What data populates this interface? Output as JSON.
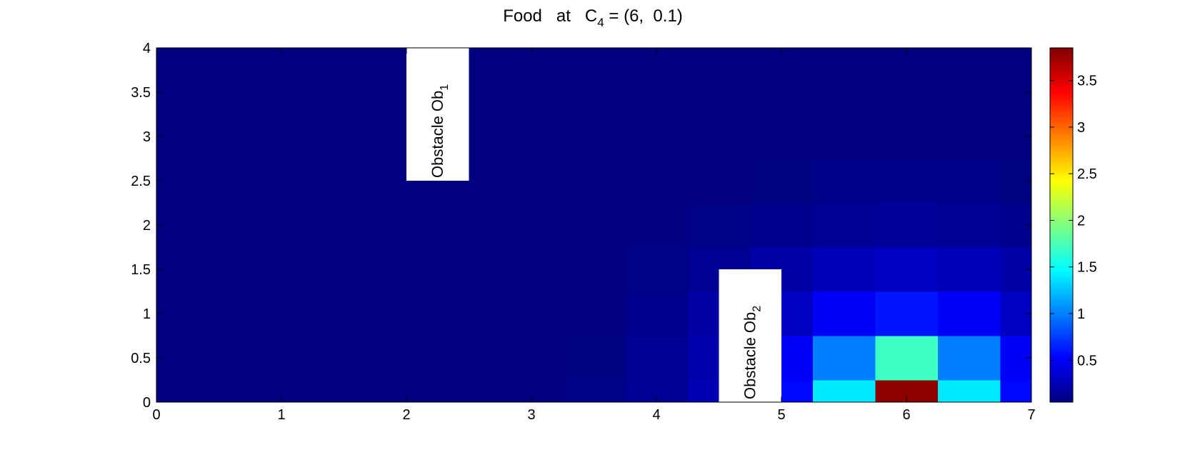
{
  "chart_data": {
    "type": "heatmap",
    "title": {
      "text": "Food   at   C",
      "subscript": "4",
      "rest": " = (6,  0.1)"
    },
    "x": [
      0,
      0.5,
      1,
      1.5,
      2,
      2.5,
      3,
      3.5,
      4,
      4.5,
      5,
      5.5,
      6,
      6.5,
      7
    ],
    "y": [
      0,
      0.5,
      1,
      1.5,
      2,
      2.5,
      3,
      3.5,
      4
    ],
    "z": [
      [
        0.05,
        0.05,
        0.05,
        0.05,
        0.05,
        0.05,
        0.05,
        0.07,
        0.12,
        0.25,
        0.55,
        1.4,
        3.8,
        1.4,
        0.55
      ],
      [
        0.05,
        0.05,
        0.05,
        0.05,
        0.05,
        0.05,
        0.05,
        0.06,
        0.12,
        0.22,
        0.5,
        1.0,
        1.7,
        1.0,
        0.5
      ],
      [
        0.05,
        0.05,
        0.05,
        0.05,
        0.05,
        0.05,
        0.05,
        0.05,
        0.1,
        0.18,
        0.3,
        0.5,
        0.6,
        0.5,
        0.3
      ],
      [
        0.05,
        0.05,
        0.05,
        0.05,
        0.05,
        0.05,
        0.05,
        0.05,
        0.07,
        0.12,
        0.2,
        0.27,
        0.3,
        0.27,
        0.2
      ],
      [
        0.05,
        0.05,
        0.05,
        0.05,
        0.05,
        0.05,
        0.05,
        0.05,
        0.05,
        0.07,
        0.1,
        0.13,
        0.15,
        0.13,
        0.1
      ],
      [
        0.05,
        0.05,
        0.05,
        0.05,
        0.05,
        0.05,
        0.05,
        0.05,
        0.05,
        0.05,
        0.06,
        0.08,
        0.09,
        0.08,
        0.06
      ],
      [
        0.05,
        0.05,
        0.05,
        0.05,
        0.05,
        0.05,
        0.05,
        0.05,
        0.05,
        0.05,
        0.05,
        0.05,
        0.05,
        0.05,
        0.05
      ],
      [
        0.05,
        0.05,
        0.05,
        0.05,
        0.05,
        0.05,
        0.05,
        0.05,
        0.05,
        0.05,
        0.05,
        0.05,
        0.05,
        0.05,
        0.05
      ],
      [
        0.05,
        0.05,
        0.05,
        0.05,
        0.05,
        0.05,
        0.05,
        0.05,
        0.05,
        0.05,
        0.05,
        0.05,
        0.05,
        0.05,
        0.05
      ]
    ],
    "xlim": [
      0,
      7
    ],
    "ylim": [
      0,
      4
    ],
    "xticks": [
      0,
      1,
      2,
      3,
      4,
      5,
      6,
      7
    ],
    "yticks": [
      0,
      0.5,
      1,
      1.5,
      2,
      2.5,
      3,
      3.5,
      4
    ],
    "colormap": "jet",
    "clim": [
      0.05,
      3.85
    ],
    "cticks": [
      0.5,
      1,
      1.5,
      2,
      2.5,
      3,
      3.5
    ],
    "obstacles": [
      {
        "label": "Obstacle Ob",
        "subscript": "1",
        "x": [
          2,
          2.5
        ],
        "y": [
          2.5,
          4
        ]
      },
      {
        "label": "Obstacle Ob",
        "subscript": "2",
        "x": [
          4.5,
          5
        ],
        "y": [
          0,
          1.5
        ]
      }
    ]
  }
}
